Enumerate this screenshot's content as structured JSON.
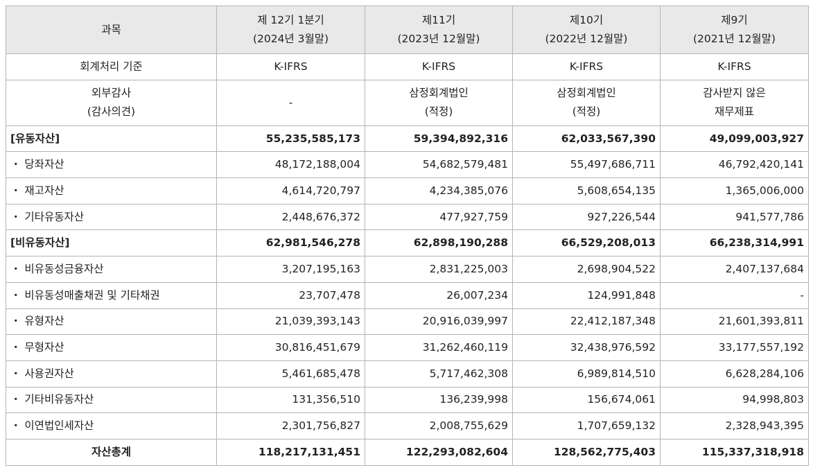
{
  "table": {
    "header": [
      [
        "과목"
      ],
      [
        "제 12기 1분기",
        "(2024년 3월말)"
      ],
      [
        "제11기",
        "(2023년 12월말)"
      ],
      [
        "제10기",
        "(2022년 12월말)"
      ],
      [
        "제9기",
        "(2021년 12월말)"
      ]
    ],
    "rows": [
      [
        [
          "회계처리 기준"
        ],
        [
          "K-IFRS"
        ],
        [
          "K-IFRS"
        ],
        [
          "K-IFRS"
        ],
        [
          "K-IFRS"
        ]
      ],
      [
        [
          "외부감사",
          "(감사의견)"
        ],
        [
          "-"
        ],
        [
          "삼정회계법인",
          "(적정)"
        ],
        [
          "삼정회계법인",
          "(적정)"
        ],
        [
          "감사받지 않은",
          "재무제표"
        ]
      ],
      [
        [
          "[유동자산]"
        ],
        [
          "55,235,585,173"
        ],
        [
          "59,394,892,316"
        ],
        [
          "62,033,567,390"
        ],
        [
          "49,099,003,927"
        ]
      ],
      [
        [
          "・ 당좌자산"
        ],
        [
          "48,172,188,004"
        ],
        [
          "54,682,579,481"
        ],
        [
          "55,497,686,711"
        ],
        [
          "46,792,420,141"
        ]
      ],
      [
        [
          "・ 재고자산"
        ],
        [
          "4,614,720,797"
        ],
        [
          "4,234,385,076"
        ],
        [
          "5,608,654,135"
        ],
        [
          "1,365,006,000"
        ]
      ],
      [
        [
          "・ 기타유동자산"
        ],
        [
          "2,448,676,372"
        ],
        [
          "477,927,759"
        ],
        [
          "927,226,544"
        ],
        [
          "941,577,786"
        ]
      ],
      [
        [
          "[비유동자산]"
        ],
        [
          "62,981,546,278"
        ],
        [
          "62,898,190,288"
        ],
        [
          "66,529,208,013"
        ],
        [
          "66,238,314,991"
        ]
      ],
      [
        [
          "・ 비유동성금융자산"
        ],
        [
          "3,207,195,163"
        ],
        [
          "2,831,225,003"
        ],
        [
          "2,698,904,522"
        ],
        [
          "2,407,137,684"
        ]
      ],
      [
        [
          "・ 비유동성매출채권 및 기타채권"
        ],
        [
          "23,707,478"
        ],
        [
          "26,007,234"
        ],
        [
          "124,991,848"
        ],
        [
          "-"
        ]
      ],
      [
        [
          "・ 유형자산"
        ],
        [
          "21,039,393,143"
        ],
        [
          "20,916,039,997"
        ],
        [
          "22,412,187,348"
        ],
        [
          "21,601,393,811"
        ]
      ],
      [
        [
          "・ 무형자산"
        ],
        [
          "30,816,451,679"
        ],
        [
          "31,262,460,119"
        ],
        [
          "32,438,976,592"
        ],
        [
          "33,177,557,192"
        ]
      ],
      [
        [
          "・ 사용권자산"
        ],
        [
          "5,461,685,478"
        ],
        [
          "5,717,462,308"
        ],
        [
          "6,989,814,510"
        ],
        [
          "6,628,284,106"
        ]
      ],
      [
        [
          "・ 기타비유동자산"
        ],
        [
          "131,356,510"
        ],
        [
          "136,239,998"
        ],
        [
          "156,674,061"
        ],
        [
          "94,998,803"
        ]
      ],
      [
        [
          "・ 이연법인세자산"
        ],
        [
          "2,301,756,827"
        ],
        [
          "2,008,755,629"
        ],
        [
          "1,707,659,132"
        ],
        [
          "2,328,943,395"
        ]
      ],
      [
        [
          "자산총계"
        ],
        [
          "118,217,131,451"
        ],
        [
          "122,293,082,604"
        ],
        [
          "128,562,775,403"
        ],
        [
          "115,337,318,918"
        ]
      ]
    ]
  }
}
